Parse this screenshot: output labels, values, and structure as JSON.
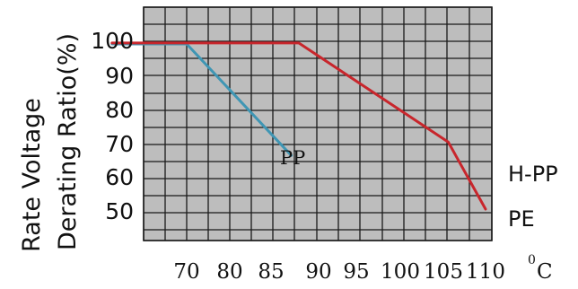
{
  "chart_data": {
    "type": "line",
    "ylabel_lines": [
      "Rate Voltage",
      "Derating Ratio(%)"
    ],
    "yticks": [
      "100",
      "90",
      "80",
      "70",
      "60",
      "50"
    ],
    "xticks": [
      "70",
      "80",
      "85",
      "90",
      "95",
      "100",
      "105",
      "110"
    ],
    "x_unit_sup": "0",
    "x_unit": "C",
    "series": [
      {
        "name": "PP",
        "color": "#3f96b4",
        "points": [
          [
            60,
            99.2
          ],
          [
            70,
            99.2
          ],
          [
            84,
            66
          ]
        ]
      },
      {
        "name": "PE",
        "color": "#c8262c",
        "points": [
          [
            60,
            99.5
          ],
          [
            85,
            99.5
          ],
          [
            105,
            70
          ],
          [
            110,
            50
          ]
        ]
      }
    ],
    "side_labels": [
      "H-PP",
      "PE"
    ],
    "grid": true,
    "plot_background": "#bdbdbd",
    "grid_color": "#1a1a1a"
  }
}
